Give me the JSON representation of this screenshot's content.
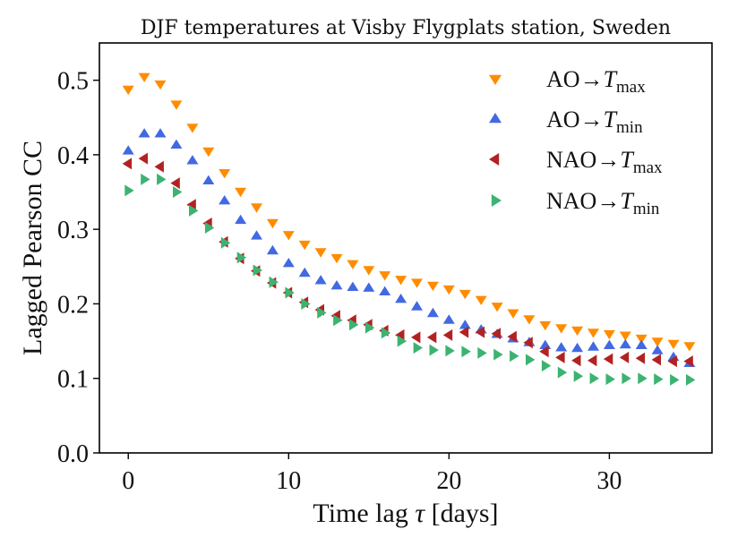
{
  "chart_data": {
    "type": "scatter",
    "title": "DJF temperatures at Visby Flygplats station, Sweden",
    "xlabel": "Time lag τ [days]",
    "xlabel_main": "Time lag ",
    "xlabel_symbol": "τ",
    "xlabel_unit": " [days]",
    "ylabel": "Lagged Pearson CC",
    "xlim": [
      -1.8,
      36.4
    ],
    "ylim": [
      0.0,
      0.55
    ],
    "xticks": [
      0,
      10,
      20,
      30
    ],
    "xtick_labels": [
      "0",
      "10",
      "20",
      "30"
    ],
    "yticks": [
      0.0,
      0.1,
      0.2,
      0.3,
      0.4,
      0.5
    ],
    "ytick_labels": [
      "0.0",
      "0.1",
      "0.2",
      "0.3",
      "0.4",
      "0.5"
    ],
    "legend_position": "top-right",
    "x": [
      0,
      1,
      2,
      3,
      4,
      5,
      6,
      7,
      8,
      9,
      10,
      11,
      12,
      13,
      14,
      15,
      16,
      17,
      18,
      19,
      20,
      21,
      22,
      23,
      24,
      25,
      26,
      27,
      28,
      29,
      30,
      31,
      32,
      33,
      34,
      35
    ],
    "series": [
      {
        "name": "AO→T_max",
        "label_main": "AO→",
        "label_symbol": "T",
        "label_sub": "max",
        "marker": "triangle-down",
        "color": "#ff8c00",
        "values": [
          0.488,
          0.505,
          0.495,
          0.468,
          0.437,
          0.405,
          0.376,
          0.351,
          0.33,
          0.309,
          0.293,
          0.28,
          0.27,
          0.262,
          0.254,
          0.246,
          0.239,
          0.233,
          0.229,
          0.225,
          0.22,
          0.214,
          0.206,
          0.197,
          0.188,
          0.18,
          0.172,
          0.168,
          0.165,
          0.162,
          0.16,
          0.158,
          0.154,
          0.15,
          0.147,
          0.144
        ]
      },
      {
        "name": "AO→T_min",
        "label_main": "AO→",
        "label_symbol": "T",
        "label_sub": "min",
        "marker": "triangle-up",
        "color": "#4169e1",
        "values": [
          0.405,
          0.428,
          0.428,
          0.413,
          0.392,
          0.365,
          0.338,
          0.312,
          0.291,
          0.271,
          0.254,
          0.241,
          0.231,
          0.224,
          0.222,
          0.221,
          0.216,
          0.206,
          0.196,
          0.187,
          0.178,
          0.171,
          0.165,
          0.159,
          0.153,
          0.148,
          0.144,
          0.141,
          0.14,
          0.142,
          0.144,
          0.145,
          0.144,
          0.137,
          0.128,
          0.12
        ]
      },
      {
        "name": "NAO→T_max",
        "label_main": "NAO→",
        "label_symbol": "T",
        "label_sub": "max",
        "marker": "triangle-left",
        "color": "#b22222",
        "values": [
          0.388,
          0.395,
          0.384,
          0.362,
          0.333,
          0.308,
          0.283,
          0.261,
          0.244,
          0.228,
          0.215,
          0.202,
          0.192,
          0.184,
          0.178,
          0.172,
          0.164,
          0.158,
          0.155,
          0.155,
          0.158,
          0.162,
          0.162,
          0.16,
          0.156,
          0.148,
          0.136,
          0.128,
          0.124,
          0.124,
          0.126,
          0.128,
          0.127,
          0.125,
          0.123,
          0.123
        ]
      },
      {
        "name": "NAO→T_min",
        "label_main": "NAO→",
        "label_symbol": "T",
        "label_sub": "min",
        "marker": "triangle-right",
        "color": "#3cb371",
        "values": [
          0.352,
          0.367,
          0.367,
          0.35,
          0.325,
          0.302,
          0.282,
          0.262,
          0.245,
          0.229,
          0.215,
          0.2,
          0.188,
          0.178,
          0.172,
          0.168,
          0.161,
          0.15,
          0.141,
          0.138,
          0.137,
          0.136,
          0.134,
          0.132,
          0.13,
          0.125,
          0.117,
          0.108,
          0.103,
          0.1,
          0.099,
          0.1,
          0.1,
          0.099,
          0.098,
          0.098
        ]
      }
    ]
  }
}
